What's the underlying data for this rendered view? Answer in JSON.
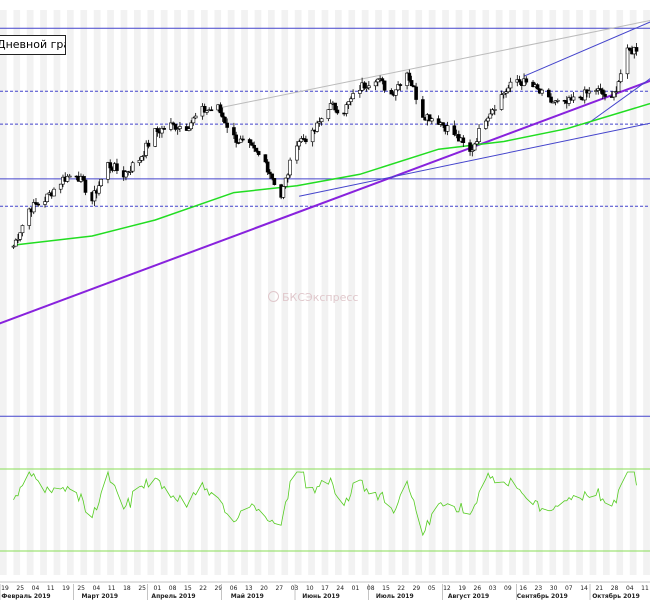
{
  "chart_data": {
    "type": "candlestick",
    "legend_text": "Дневной график",
    "watermark": "БКСЭкспресс",
    "x_range": [
      "2019-01-22",
      "2019-11-07"
    ],
    "y_range": [
      2240,
      3160
    ],
    "x_tick_days": [
      "19",
      "25",
      "04",
      "11",
      "19",
      "25",
      "04",
      "11",
      "18",
      "25",
      "01",
      "08",
      "15",
      "22",
      "29",
      "06",
      "13",
      "20",
      "27",
      "03",
      "10",
      "17",
      "24",
      "01",
      "08",
      "15",
      "22",
      "29",
      "05",
      "12",
      "19",
      "26",
      "03",
      "09",
      "16",
      "23",
      "30",
      "07",
      "14",
      "21",
      "28",
      "04",
      "11"
    ],
    "x_month_labels": [
      "Февраль 2019",
      "Март 2019",
      "Апрель 2019",
      "Май 2019",
      "Июнь 2019",
      "Июль 2019",
      "Август 2019",
      "Сентябрь 2019",
      "Октябрь 2019"
    ],
    "horizontal_levels": [
      {
        "value": 3120,
        "style": "solid",
        "color": "#4444cc"
      },
      {
        "value": 2982,
        "style": "dashed",
        "color": "#4444cc"
      },
      {
        "value": 2910,
        "style": "dashed",
        "color": "#4444cc"
      },
      {
        "value": 2790,
        "style": "solid",
        "color": "#4444cc"
      },
      {
        "value": 2730,
        "style": "dashed",
        "color": "#4444cc"
      },
      {
        "value": 2270,
        "style": "solid",
        "color": "#4444cc"
      }
    ],
    "price_series": [
      {
        "date": "2019-01-28",
        "close": 2643
      },
      {
        "date": "2019-02-04",
        "close": 2724
      },
      {
        "date": "2019-02-11",
        "close": 2745
      },
      {
        "date": "2019-02-19",
        "close": 2790
      },
      {
        "date": "2019-02-25",
        "close": 2803
      },
      {
        "date": "2019-03-04",
        "close": 2743
      },
      {
        "date": "2019-03-11",
        "close": 2822
      },
      {
        "date": "2019-03-18",
        "close": 2800
      },
      {
        "date": "2019-03-25",
        "close": 2834
      },
      {
        "date": "2019-04-01",
        "close": 2892
      },
      {
        "date": "2019-04-08",
        "close": 2907
      },
      {
        "date": "2019-04-15",
        "close": 2905
      },
      {
        "date": "2019-04-22",
        "close": 2939
      },
      {
        "date": "2019-04-29",
        "close": 2945
      },
      {
        "date": "2019-05-06",
        "close": 2881
      },
      {
        "date": "2019-05-13",
        "close": 2859
      },
      {
        "date": "2019-05-20",
        "close": 2826
      },
      {
        "date": "2019-05-27",
        "close": 2752
      },
      {
        "date": "2019-06-03",
        "close": 2873
      },
      {
        "date": "2019-06-10",
        "close": 2886
      },
      {
        "date": "2019-06-17",
        "close": 2950
      },
      {
        "date": "2019-06-24",
        "close": 2941
      },
      {
        "date": "2019-07-01",
        "close": 2990
      },
      {
        "date": "2019-07-08",
        "close": 3013
      },
      {
        "date": "2019-07-15",
        "close": 2976
      },
      {
        "date": "2019-07-22",
        "close": 3025
      },
      {
        "date": "2019-07-29",
        "close": 2932
      },
      {
        "date": "2019-08-05",
        "close": 2918
      },
      {
        "date": "2019-08-12",
        "close": 2888
      },
      {
        "date": "2019-08-19",
        "close": 2847
      },
      {
        "date": "2019-08-26",
        "close": 2926
      },
      {
        "date": "2019-09-03",
        "close": 2979
      },
      {
        "date": "2019-09-09",
        "close": 3007
      },
      {
        "date": "2019-09-16",
        "close": 2992
      },
      {
        "date": "2019-09-23",
        "close": 2961
      },
      {
        "date": "2019-09-30",
        "close": 2952
      },
      {
        "date": "2019-10-07",
        "close": 2970
      },
      {
        "date": "2019-10-14",
        "close": 2986
      },
      {
        "date": "2019-10-21",
        "close": 2961
      },
      {
        "date": "2019-10-28",
        "close": 3066
      },
      {
        "date": "2019-11-04",
        "close": 3085
      }
    ],
    "moving_average": {
      "color": "#22dd22",
      "values": [
        {
          "date": "2019-01-28",
          "value": 2645
        },
        {
          "date": "2019-03-04",
          "value": 2665
        },
        {
          "date": "2019-04-01",
          "value": 2700
        },
        {
          "date": "2019-05-06",
          "value": 2760
        },
        {
          "date": "2019-06-03",
          "value": 2775
        },
        {
          "date": "2019-07-01",
          "value": 2800
        },
        {
          "date": "2019-08-05",
          "value": 2855
        },
        {
          "date": "2019-09-03",
          "value": 2872
        },
        {
          "date": "2019-10-01",
          "value": 2900
        },
        {
          "date": "2019-11-07",
          "value": 2955
        }
      ]
    },
    "trend_lines": [
      {
        "color": "#8822dd",
        "points": [
          [
            "2019-01-20",
            2470
          ],
          [
            "2019-11-10",
            3010
          ]
        ]
      },
      {
        "color": "#4444cc",
        "points": [
          [
            "2019-06-04",
            2752
          ],
          [
            "2019-11-10",
            2915
          ]
        ]
      },
      {
        "color": "#4444cc",
        "points": [
          [
            "2019-09-12",
            3015
          ],
          [
            "2019-11-10",
            3140
          ]
        ]
      },
      {
        "color": "#4444cc",
        "points": [
          [
            "2019-10-10",
            2910
          ],
          [
            "2019-11-10",
            3020
          ]
        ]
      },
      {
        "color": "#bbbbbb",
        "points": [
          [
            "2019-04-29",
            2945
          ],
          [
            "2019-11-10",
            3140
          ]
        ]
      }
    ],
    "oscillator": {
      "color": "#55cc22",
      "band_color": "#88dd55"
    }
  }
}
